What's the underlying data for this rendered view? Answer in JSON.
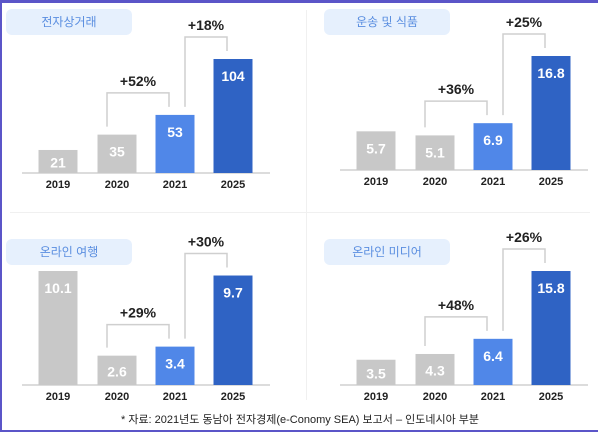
{
  "chart_data": [
    {
      "type": "bar",
      "title": "전자상거래",
      "categories": [
        "2019",
        "2020",
        "2021",
        "2025"
      ],
      "values": [
        21,
        35,
        53,
        104
      ],
      "annotations": [
        {
          "from": "2020",
          "to": "2021",
          "label": "+52%"
        },
        {
          "from": "2021",
          "to": "2025",
          "label": "+18%"
        }
      ]
    },
    {
      "type": "bar",
      "title": "운송 및 식품",
      "categories": [
        "2019",
        "2020",
        "2021",
        "2025"
      ],
      "values": [
        5.7,
        5.1,
        6.9,
        16.8
      ],
      "annotations": [
        {
          "from": "2020",
          "to": "2021",
          "label": "+36%"
        },
        {
          "from": "2021",
          "to": "2025",
          "label": "+25%"
        }
      ]
    },
    {
      "type": "bar",
      "title": "온라인 여행",
      "categories": [
        "2019",
        "2020",
        "2021",
        "2025"
      ],
      "values": [
        10.1,
        2.6,
        3.4,
        9.7
      ],
      "annotations": [
        {
          "from": "2020",
          "to": "2021",
          "label": "+29%"
        },
        {
          "from": "2021",
          "to": "2025",
          "label": "+30%"
        }
      ]
    },
    {
      "type": "bar",
      "title": "온라인 미디어",
      "categories": [
        "2019",
        "2020",
        "2021",
        "2025"
      ],
      "values": [
        3.5,
        4.3,
        6.4,
        15.8
      ],
      "annotations": [
        {
          "from": "2020",
          "to": "2021",
          "label": "+48%"
        },
        {
          "from": "2021",
          "to": "2025",
          "label": "+26%"
        }
      ]
    }
  ],
  "colors": {
    "past": "#c8c8c8",
    "current": "#5087e8",
    "forecast": "#2f63c4",
    "pill_bg": "#e6f0fd",
    "pill_text": "#5a8ee0",
    "border": "#5b55c8"
  },
  "footer": "* 자료: 2021년도 동남아 전자경제(e-Conomy SEA) 보고서 – 인도네시아 부분"
}
